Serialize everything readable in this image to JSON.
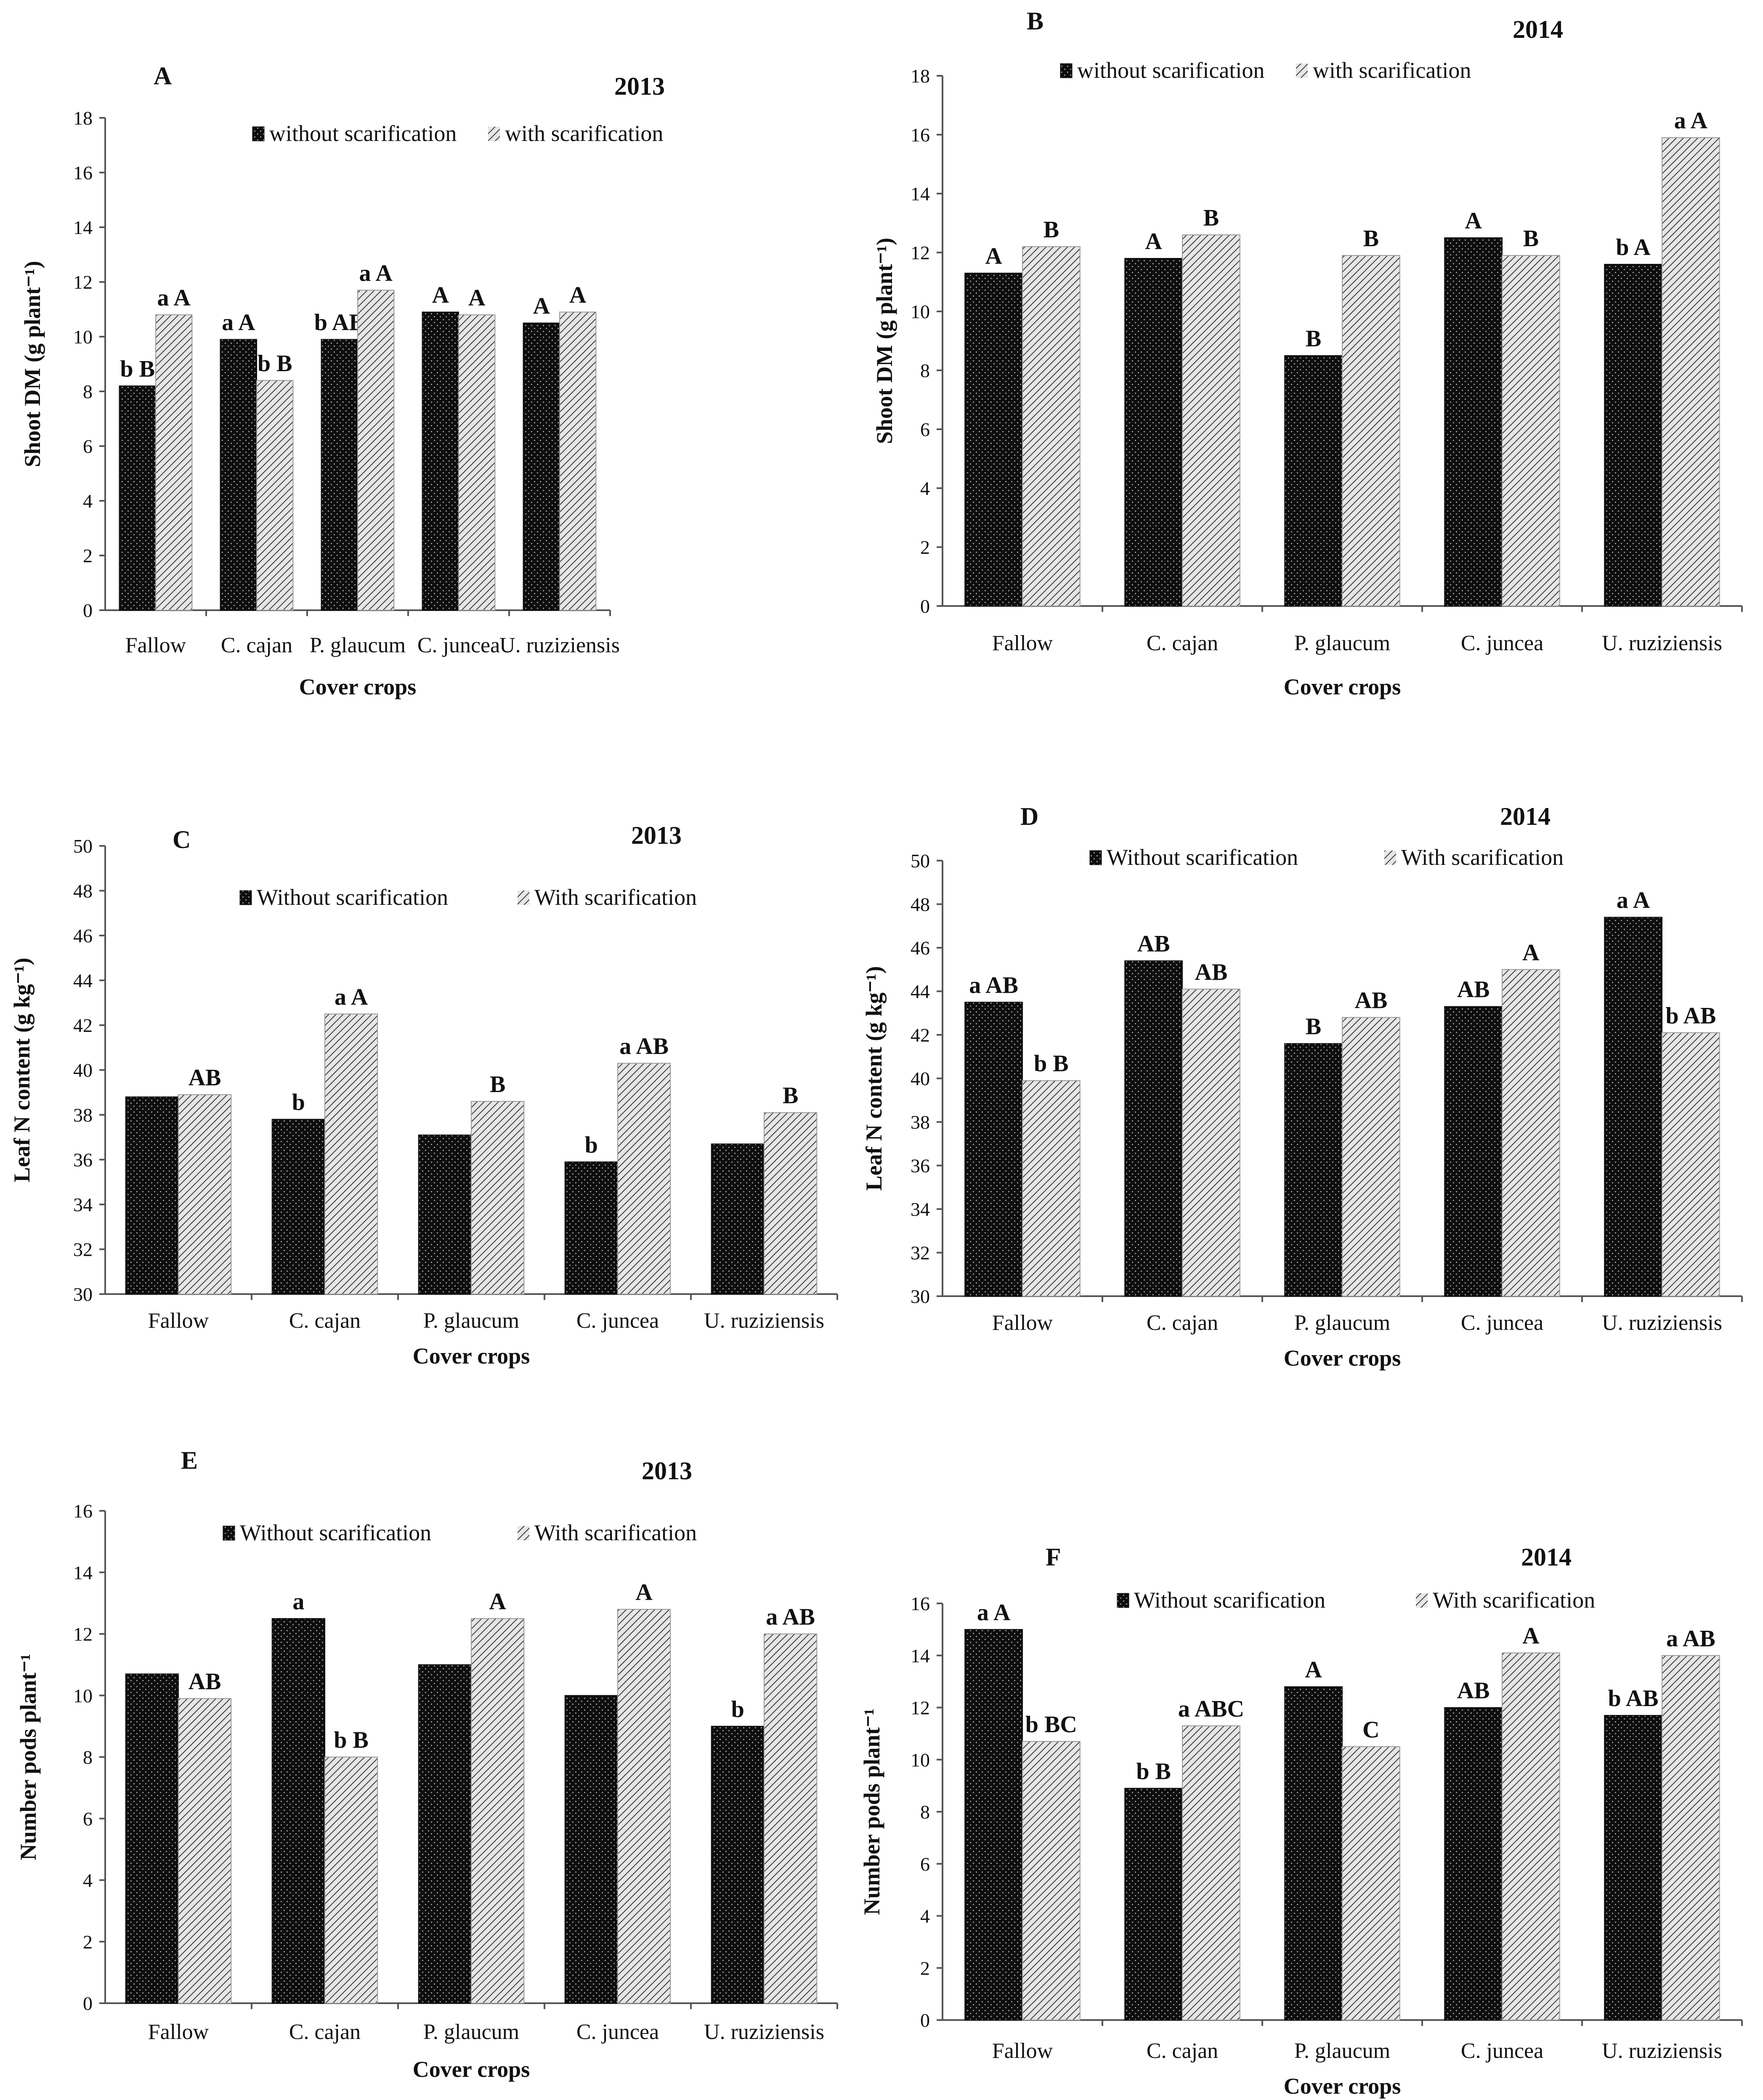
{
  "colors": {
    "bar_dark": "#0e0e0e",
    "bar_light": "#d9d9d9",
    "axis": "#555555",
    "text": "#111111"
  },
  "chart_data": [
    {
      "type": "bar",
      "panel": "A",
      "year": "2013",
      "categories": [
        "Fallow",
        "C. cajan",
        "P. glaucum",
        "C. juncea",
        "U. ruziziensis"
      ],
      "xlabel": "Cover crops",
      "ylabel": "Shoot DM (g plant⁻¹)",
      "ylim": [
        0,
        18
      ],
      "yticks": [
        0,
        2,
        4,
        6,
        8,
        10,
        12,
        14,
        16,
        18
      ],
      "legend": "top-center",
      "series": [
        {
          "name": "without scarification",
          "values": [
            8.2,
            9.9,
            9.9,
            10.9,
            10.5
          ],
          "labels": [
            "b B",
            "a A",
            "b AB",
            "A",
            "A"
          ]
        },
        {
          "name": "with scarification",
          "values": [
            10.8,
            8.4,
            11.7,
            10.8,
            10.9
          ],
          "labels": [
            "a A",
            "b B",
            "a A",
            "A",
            "A"
          ]
        }
      ]
    },
    {
      "type": "bar",
      "panel": "B",
      "year": "2014",
      "categories": [
        "Fallow",
        "C. cajan",
        "P. glaucum",
        "C. juncea",
        "U. ruziziensis"
      ],
      "xlabel": "Cover crops",
      "ylabel": "Shoot DM (g plant⁻¹)",
      "ylim": [
        0,
        18
      ],
      "yticks": [
        0,
        2,
        4,
        6,
        8,
        10,
        12,
        14,
        16,
        18
      ],
      "legend": "top-center",
      "series": [
        {
          "name": "without scarification",
          "values": [
            11.3,
            11.8,
            8.5,
            12.5,
            11.6
          ],
          "labels": [
            "A",
            "A",
            "B",
            "A",
            "b A"
          ]
        },
        {
          "name": "with scarification",
          "values": [
            12.2,
            12.6,
            11.9,
            11.9,
            15.9
          ],
          "labels": [
            "B",
            "B",
            "B",
            "B",
            "a A"
          ]
        }
      ]
    },
    {
      "type": "bar",
      "panel": "C",
      "year": "2013",
      "categories": [
        "Fallow",
        "C. cajan",
        "P. glaucum",
        "C. juncea",
        "U. ruziziensis"
      ],
      "xlabel": "Cover crops",
      "ylabel": "Leaf N content (g kg⁻¹)",
      "ylim": [
        30,
        50
      ],
      "yticks": [
        30,
        32,
        34,
        36,
        38,
        40,
        42,
        44,
        46,
        48,
        50
      ],
      "legend": "top-center",
      "series": [
        {
          "name": "Without scarification",
          "values": [
            38.8,
            37.8,
            37.1,
            35.9,
            36.7
          ],
          "labels": [
            "",
            "b",
            "",
            "b",
            ""
          ]
        },
        {
          "name": "With scarification",
          "values": [
            38.9,
            42.5,
            38.6,
            40.3,
            38.1
          ],
          "labels": [
            "AB",
            "a A",
            "B",
            "a AB",
            "B"
          ]
        }
      ]
    },
    {
      "type": "bar",
      "panel": "D",
      "year": "2014",
      "categories": [
        "Fallow",
        "C. cajan",
        "P. glaucum",
        "C. juncea",
        "U. ruziziensis"
      ],
      "xlabel": "Cover crops",
      "ylabel": "Leaf N content (g kg⁻¹)",
      "ylim": [
        30,
        50
      ],
      "yticks": [
        30,
        32,
        34,
        36,
        38,
        40,
        42,
        44,
        46,
        48,
        50
      ],
      "legend": "top-center",
      "series": [
        {
          "name": "Without scarification",
          "values": [
            43.5,
            45.4,
            41.6,
            43.3,
            47.4
          ],
          "labels": [
            "a AB",
            "AB",
            "B",
            "AB",
            "a A"
          ]
        },
        {
          "name": "With scarification",
          "values": [
            39.9,
            44.1,
            42.8,
            45.0,
            42.1
          ],
          "labels": [
            "b B",
            "AB",
            "AB",
            "A",
            "b AB"
          ]
        }
      ]
    },
    {
      "type": "bar",
      "panel": "E",
      "year": "2013",
      "categories": [
        "Fallow",
        "C. cajan",
        "P. glaucum",
        "C. juncea",
        "U. ruziziensis"
      ],
      "xlabel": "Cover crops",
      "ylabel": "Number pods plant⁻¹",
      "ylim": [
        0,
        16
      ],
      "yticks": [
        0,
        2,
        4,
        6,
        8,
        10,
        12,
        14,
        16
      ],
      "legend": "top-center",
      "series": [
        {
          "name": "Without scarification",
          "values": [
            10.7,
            12.5,
            11.0,
            10.0,
            9.0
          ],
          "labels": [
            "",
            "a",
            "",
            "",
            "b"
          ]
        },
        {
          "name": "With scarification",
          "values": [
            9.9,
            8.0,
            12.5,
            12.8,
            12.0
          ],
          "labels": [
            "AB",
            "b B",
            "A",
            "A",
            "a AB"
          ]
        }
      ]
    },
    {
      "type": "bar",
      "panel": "F",
      "year": "2014",
      "categories": [
        "Fallow",
        "C. cajan",
        "P. glaucum",
        "C. juncea",
        "U. ruziziensis"
      ],
      "xlabel": "Cover crops",
      "ylabel": "Number pods plant⁻¹",
      "ylim": [
        0,
        16
      ],
      "yticks": [
        0,
        2,
        4,
        6,
        8,
        10,
        12,
        14,
        16
      ],
      "legend": "top-center",
      "series": [
        {
          "name": "Without scarification",
          "values": [
            15.0,
            8.9,
            12.8,
            12.0,
            11.7
          ],
          "labels": [
            "a A",
            "b B",
            "A",
            "AB",
            "b AB"
          ]
        },
        {
          "name": "With scarification",
          "values": [
            10.7,
            11.3,
            10.5,
            14.1,
            14.0
          ],
          "labels": [
            "b BC",
            "a ABC",
            "C",
            "A",
            "a AB"
          ]
        }
      ]
    }
  ]
}
